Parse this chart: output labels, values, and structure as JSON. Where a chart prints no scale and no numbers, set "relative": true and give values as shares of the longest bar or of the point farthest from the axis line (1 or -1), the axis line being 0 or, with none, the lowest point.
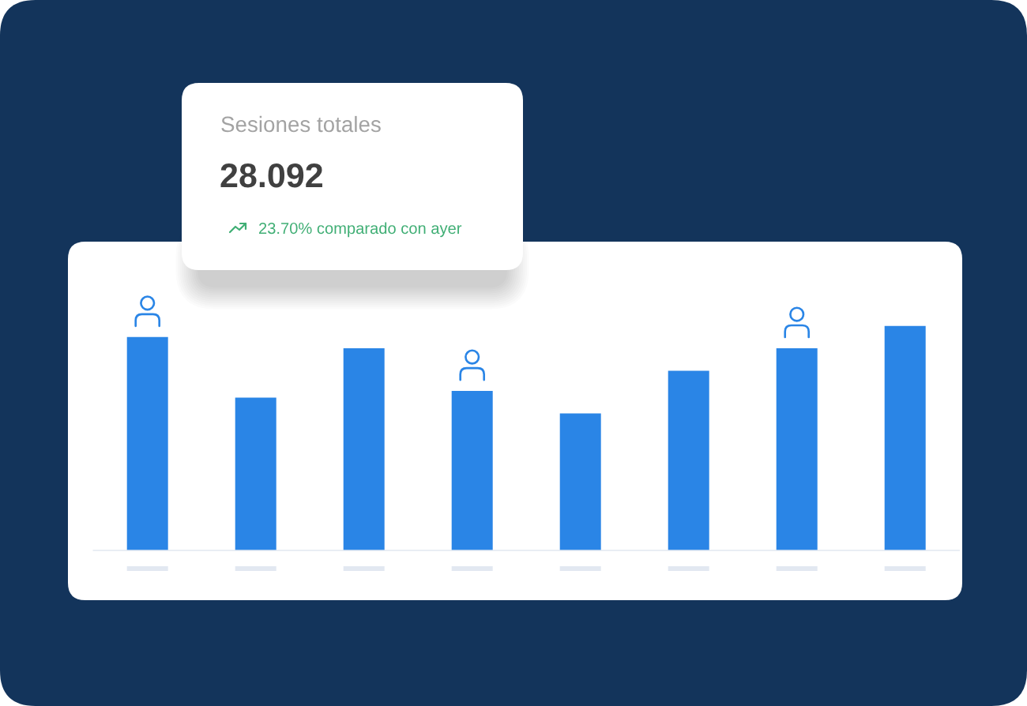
{
  "chart_data": {
    "type": "bar",
    "title": "Sesiones totales",
    "annotations": [
      "28.092",
      "23.70% comparado con ayer"
    ],
    "relative": true,
    "categories": [
      null,
      null,
      null,
      null,
      null,
      null,
      null,
      null
    ],
    "values": [
      0.95,
      0.68,
      0.9,
      0.71,
      0.61,
      0.8,
      0.9,
      1
    ],
    "color": "#2a85e6"
  }
}
